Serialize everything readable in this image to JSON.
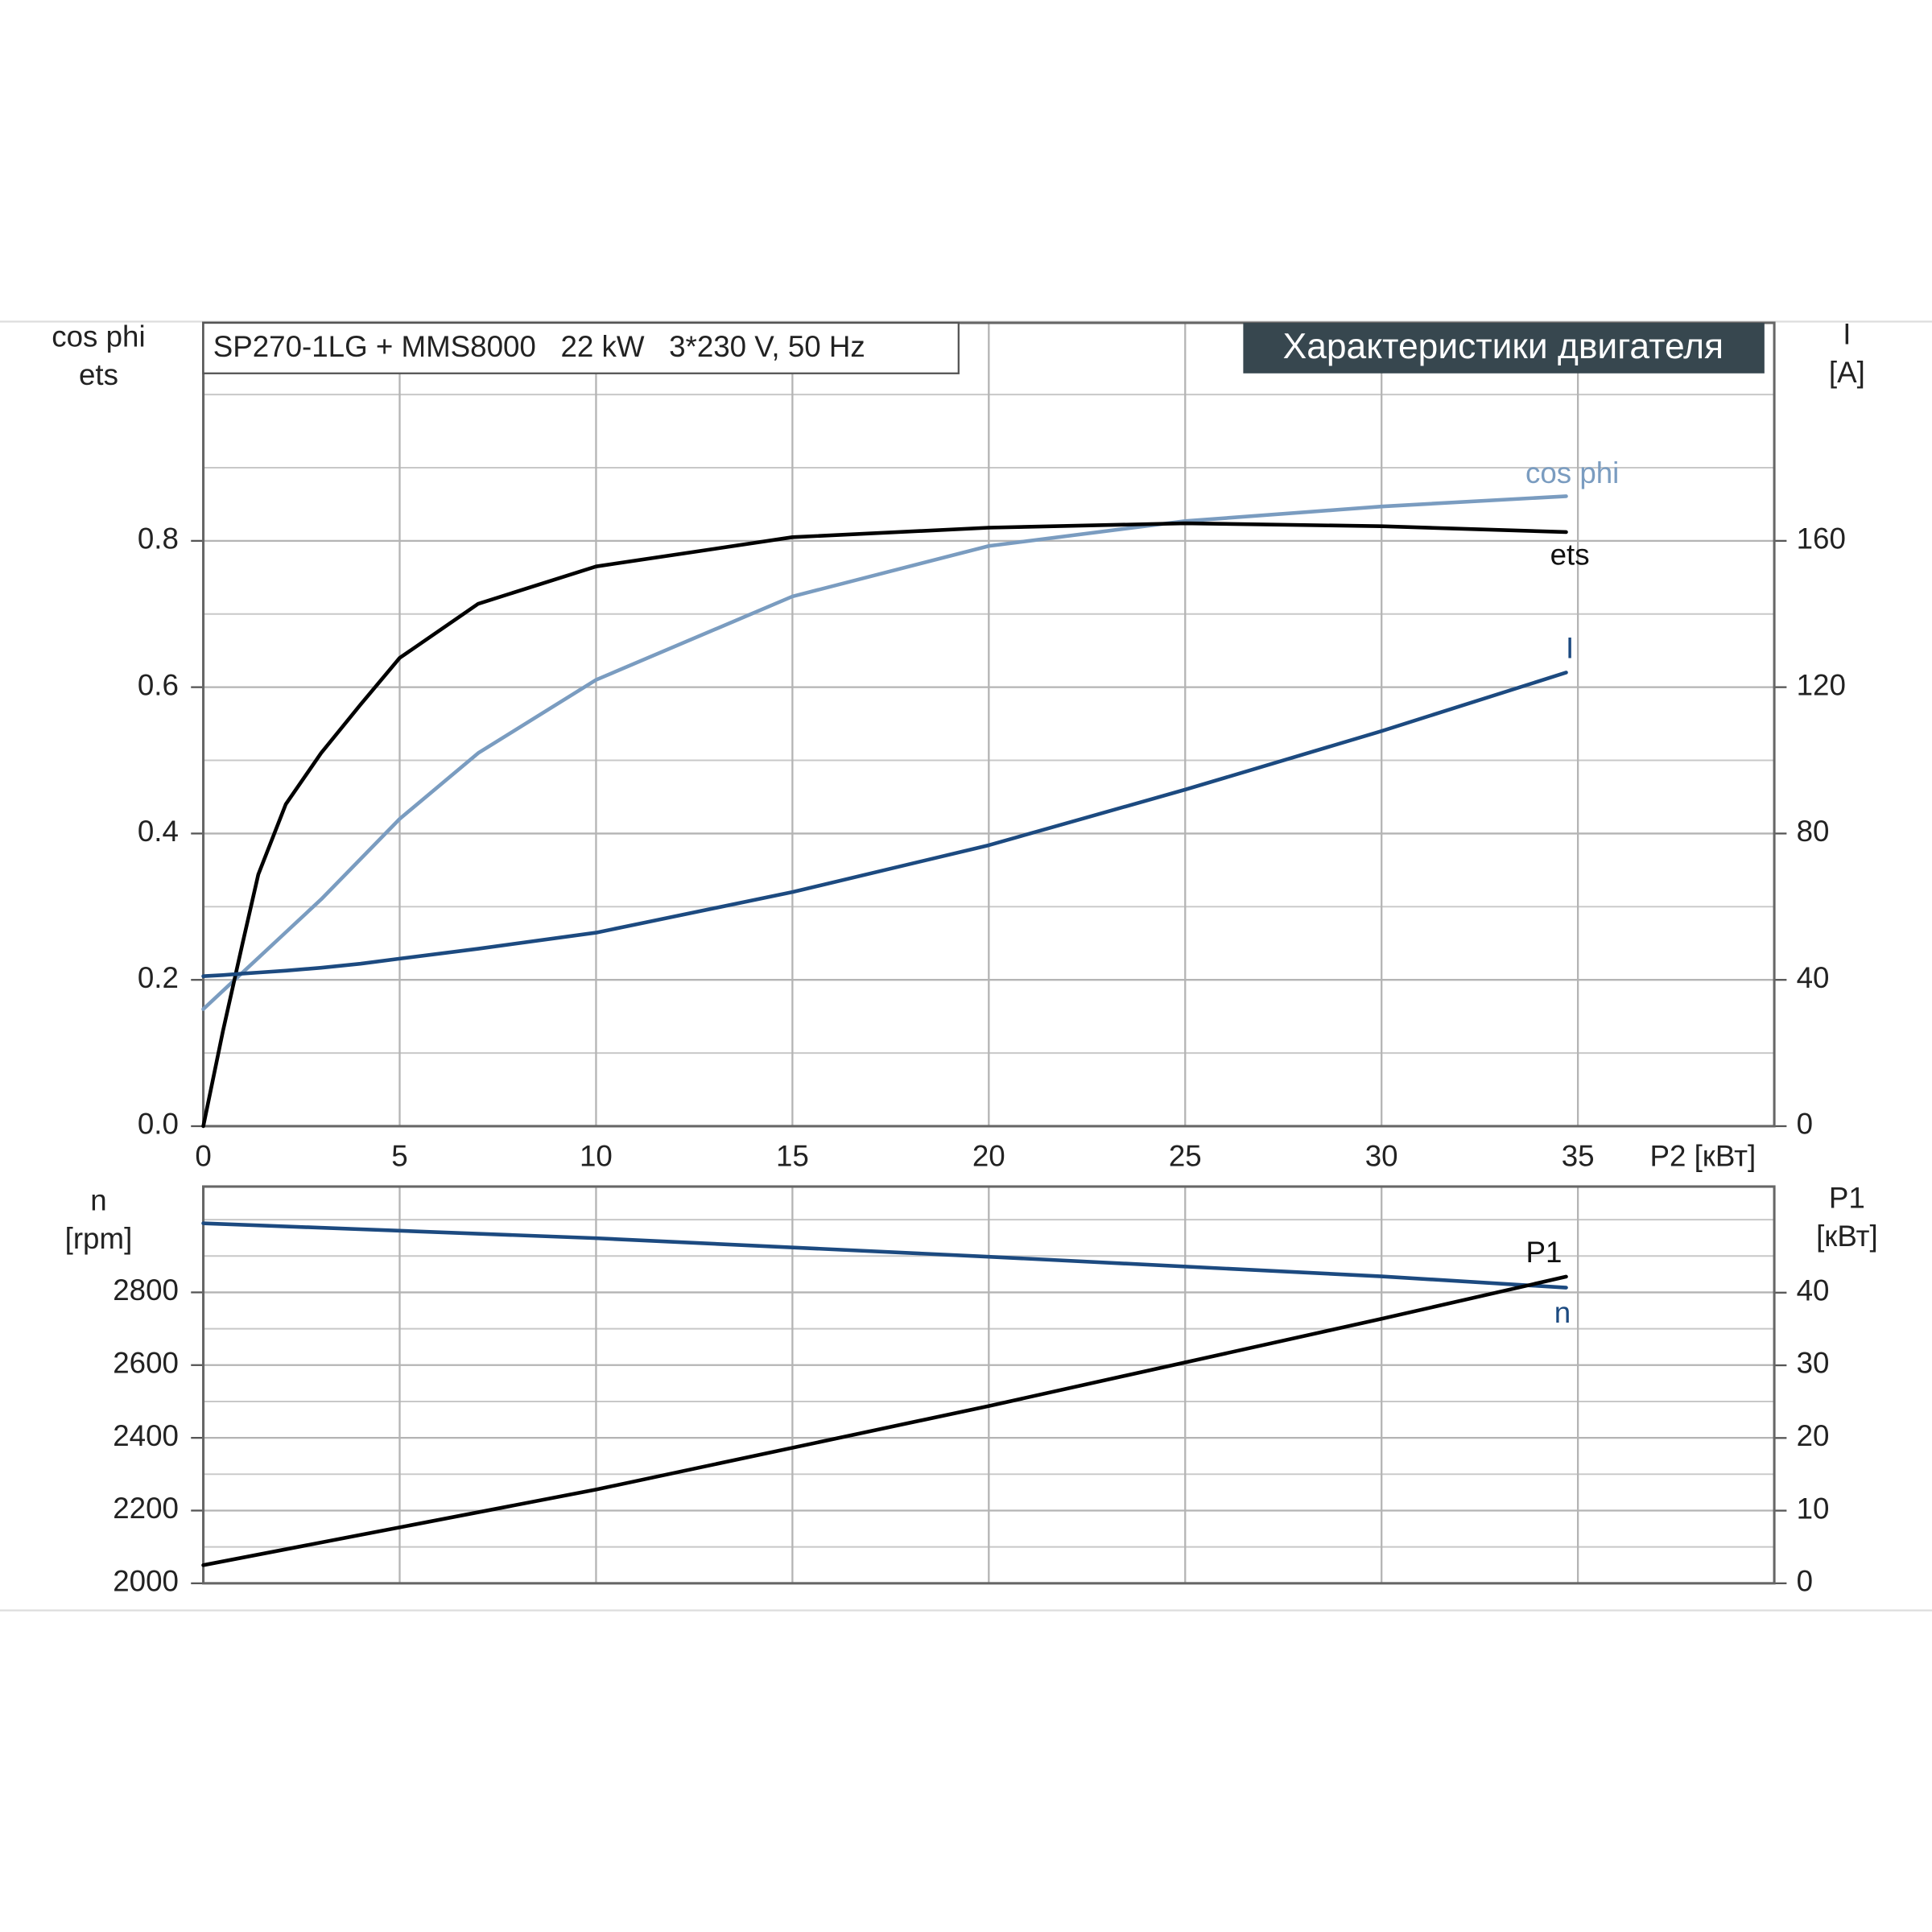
{
  "chart_data": [
    {
      "type": "line",
      "box_title": "SP270-1LG + MMS8000   22 kW   3*230 V, 50 Hz",
      "banner": "Характеристики двигателя",
      "ylabel": [
        "cos phi",
        "ets"
      ],
      "y2label": [
        "I",
        "[A]"
      ],
      "xlabel": "P2 [кВт]",
      "x": [
        0,
        0.5,
        1,
        1.4,
        2.1,
        3,
        4,
        5,
        7,
        10,
        15,
        20,
        25,
        30,
        34.7
      ],
      "xlim": [
        0,
        40
      ],
      "xticks": [
        0,
        5,
        10,
        15,
        20,
        25,
        30,
        35
      ],
      "ylim": [
        0,
        1.098
      ],
      "yticks": [
        {
          "value": 0,
          "label": "0.0"
        },
        0.2,
        0.4,
        0.6,
        0.8
      ],
      "yminor": [
        0.1,
        0.3,
        0.5,
        0.7,
        0.9,
        1.0
      ],
      "y2lim": [
        0,
        219.6
      ],
      "y2ticks": [
        0,
        40,
        80,
        120,
        160
      ],
      "grid": true,
      "series": [
        {
          "name": "cos phi",
          "color": "#7a9cc0",
          "values": [
            0.16,
            0.185,
            0.21,
            0.23,
            0.265,
            0.31,
            0.365,
            0.42,
            0.51,
            0.61,
            0.724,
            0.793,
            0.827,
            0.847,
            0.861
          ]
        },
        {
          "name": "ets",
          "color": "#000000",
          "values": [
            0,
            0.13,
            0.25,
            0.344,
            0.44,
            0.51,
            0.576,
            0.64,
            0.714,
            0.765,
            0.805,
            0.818,
            0.824,
            0.82,
            0.812
          ]
        },
        {
          "name": "I",
          "color": "#1c4a80",
          "axis": "y2",
          "values": [
            41,
            41.3,
            41.7,
            42,
            42.5,
            43.3,
            44.4,
            45.8,
            48.5,
            52.9,
            64,
            76.8,
            92,
            108,
            124
          ]
        }
      ]
    },
    {
      "type": "line",
      "ylabel": [
        "n",
        "[rpm]"
      ],
      "y2label": [
        "P1",
        "[кВт]"
      ],
      "x": [
        0,
        10,
        20,
        30,
        34.7
      ],
      "xlim": [
        0,
        40
      ],
      "xgrid": [
        5,
        10,
        15,
        20,
        25,
        30,
        35
      ],
      "ylim": [
        2000,
        3091
      ],
      "yticks": [
        2000,
        2200,
        2400,
        2600,
        2800
      ],
      "yminor": [
        2100,
        2300,
        2500,
        2700,
        2900,
        3000
      ],
      "y2lim": [
        0,
        54.6
      ],
      "y2ticks": [
        0,
        10,
        20,
        30,
        40
      ],
      "grid": true,
      "series": [
        {
          "name": "n",
          "color": "#1c4a80",
          "values": [
            2990,
            2949,
            2898,
            2844,
            2813
          ]
        },
        {
          "name": "P1",
          "color": "#000000",
          "axis": "y2",
          "values": [
            2.5,
            12.9,
            24.4,
            36.4,
            42.2
          ]
        }
      ]
    }
  ]
}
